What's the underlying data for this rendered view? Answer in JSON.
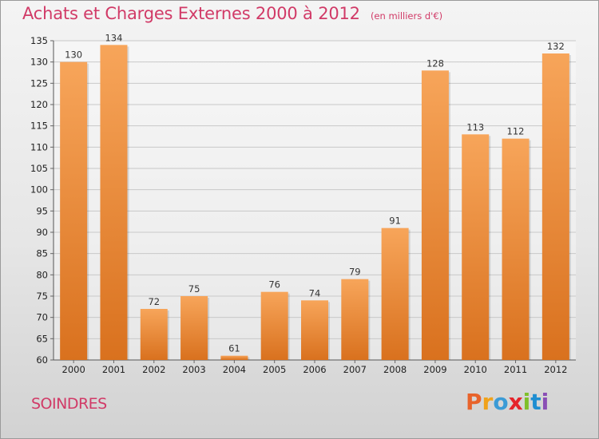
{
  "header": {
    "title": "Achats et Charges Externes 2000 à 2012",
    "unit": "(en milliers d'€)"
  },
  "commune": "SOINDRES",
  "brand": {
    "letters": [
      "P",
      "r",
      "o",
      "x",
      "i",
      "t",
      "i"
    ],
    "colors": [
      "#e8632b",
      "#f0a21b",
      "#3b9bd6",
      "#e5242b",
      "#7fbf2a",
      "#1f8ed1",
      "#8a4fb5"
    ]
  },
  "colors": {
    "bar_top": "#f7a55a",
    "bar_bottom": "#d9711e",
    "title": "#d13a67"
  },
  "chart_data": {
    "type": "bar",
    "categories": [
      "2000",
      "2001",
      "2002",
      "2003",
      "2004",
      "2005",
      "2006",
      "2007",
      "2008",
      "2009",
      "2010",
      "2011",
      "2012"
    ],
    "values": [
      130,
      134,
      72,
      75,
      61,
      76,
      74,
      79,
      91,
      128,
      113,
      112,
      132
    ],
    "title": "Achats et Charges Externes 2000 à 2012",
    "ylim": [
      60,
      135
    ],
    "yticks": [
      60,
      65,
      70,
      75,
      80,
      85,
      90,
      95,
      100,
      105,
      110,
      115,
      120,
      125,
      130,
      135
    ],
    "grid": true,
    "data_labels": true
  }
}
